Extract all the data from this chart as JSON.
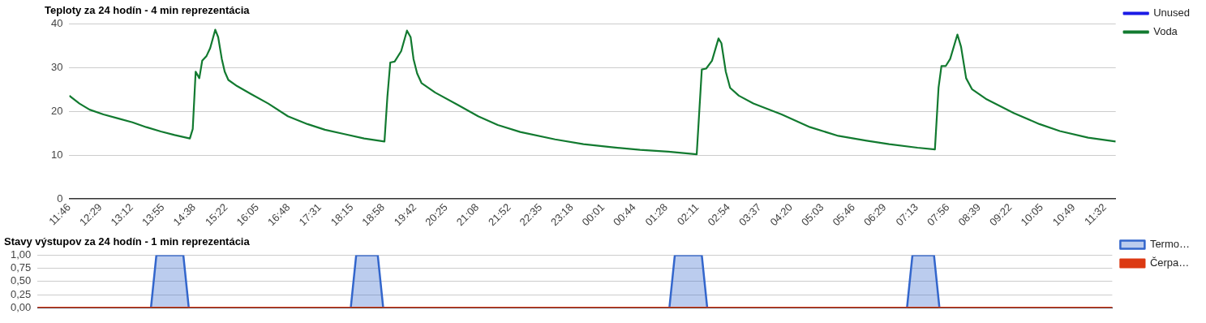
{
  "chart_data": [
    {
      "type": "line",
      "title": "Teploty za 24 hodín - 4 min reprezentácia",
      "grid": "y",
      "legend": "right",
      "line_style": "solid",
      "x": [
        "--01-01T11:46",
        "--01-01T12:00",
        "--01-01T12:14",
        "--01-01T12:33",
        "--01-01T12:53",
        "--01-01T13:13",
        "--01-01T13:32",
        "--01-01T13:52",
        "--01-01T14:11",
        "--01-01T14:32",
        "--01-01T14:36",
        "--01-01T14:40",
        "--01-01T14:45",
        "--01-01T14:49",
        "--01-01T14:55",
        "--01-01T15:00",
        "--01-01T15:07",
        "--01-01T15:11",
        "--01-01T15:16",
        "--01-01T15:20",
        "--01-01T15:25",
        "--01-01T15:37",
        "--01-01T15:56",
        "--01-01T16:20",
        "--01-01T16:47",
        "--01-01T17:14",
        "--01-01T17:38",
        "--01-01T18:05",
        "--01-01T18:32",
        "--01-01T19:00",
        "--01-01T19:04",
        "--01-01T19:08",
        "--01-01T19:14",
        "--01-01T19:23",
        "--01-01T19:31",
        "--01-01T19:36",
        "--01-01T19:40",
        "--01-01T19:45",
        "--01-01T19:51",
        "--01-01T20:10",
        "--01-01T20:41",
        "--01-01T21:09",
        "--01-01T21:36",
        "--01-01T22:07",
        "--01-01T22:55",
        "--01-01T23:34",
        "--01-02T00:13",
        "--01-02T00:52",
        "--01-02T01:31",
        "--01-02T02:10",
        "--01-02T02:17",
        "--01-02T02:23",
        "--01-02T02:31",
        "--01-02T02:40",
        "--01-02T02:44",
        "--01-02T02:50",
        "--01-02T02:56",
        "--01-02T03:08",
        "--01-02T03:28",
        "--01-02T04:07",
        "--01-02T04:46",
        "--01-02T05:25",
        "--01-02T06:04",
        "--01-02T06:35",
        "--01-02T07:14",
        "--01-02T07:38",
        "--01-02T07:43",
        "--01-02T07:47",
        "--01-02T07:53",
        "--01-02T07:59",
        "--01-02T08:09",
        "--01-02T08:14",
        "--01-02T08:21",
        "--01-02T08:29",
        "--01-02T08:48",
        "--01-02T09:27",
        "--01-02T10:02",
        "--01-02T10:30",
        "--01-02T11:09",
        "--01-02T11:47"
      ],
      "series": [
        {
          "name": "Unused",
          "color": "#1a1ae6",
          "values": [
            null,
            null,
            null,
            null,
            null,
            null,
            null,
            null,
            null,
            null,
            null,
            null,
            null,
            null,
            null,
            null,
            null,
            null,
            null,
            null,
            null,
            null,
            null,
            null,
            null,
            null,
            null,
            null,
            null,
            null,
            null,
            null,
            null,
            null,
            null,
            null,
            null,
            null,
            null,
            null,
            null,
            null,
            null,
            null,
            null,
            null,
            null,
            null,
            null,
            null,
            null,
            null,
            null,
            null,
            null,
            null,
            null,
            null,
            null,
            null,
            null,
            null,
            null,
            null,
            null,
            null,
            null,
            null,
            null,
            null,
            null,
            null,
            null,
            null,
            null,
            null,
            null,
            null,
            null,
            null
          ]
        },
        {
          "name": "Voda",
          "color": "#127a30",
          "values": [
            23.6,
            21.8,
            20.4,
            19.3,
            18.4,
            17.5,
            16.4,
            15.4,
            14.6,
            13.8,
            16.0,
            29.1,
            27.6,
            31.6,
            32.7,
            34.5,
            38.7,
            37.0,
            32.0,
            29.1,
            27.2,
            25.8,
            24.0,
            21.8,
            18.9,
            17.1,
            15.8,
            14.8,
            13.8,
            13.1,
            23.3,
            31.2,
            31.4,
            33.8,
            38.5,
            37.0,
            32.0,
            28.7,
            26.5,
            24.3,
            21.5,
            18.9,
            16.9,
            15.3,
            13.6,
            12.5,
            11.8,
            11.2,
            10.8,
            10.2,
            29.6,
            29.8,
            31.6,
            36.7,
            35.6,
            29.1,
            25.4,
            23.6,
            21.8,
            19.3,
            16.4,
            14.4,
            13.3,
            12.5,
            11.7,
            11.3,
            25.4,
            30.4,
            30.4,
            32.0,
            37.6,
            34.8,
            27.6,
            25.1,
            22.9,
            19.6,
            17.1,
            15.5,
            14.0,
            13.1
          ]
        }
      ],
      "xlim": [
        "--01-01T11:46",
        "--01-02T11:47"
      ],
      "xticks": [
        {
          "value": "--01-01T11:46",
          "label": "11:46"
        },
        {
          "value": "--01-01T12:29",
          "label": "12:29"
        },
        {
          "value": "--01-01T13:12",
          "label": "13:12"
        },
        {
          "value": "--01-01T13:55",
          "label": "13:55"
        },
        {
          "value": "--01-01T14:38",
          "label": "14:38"
        },
        {
          "value": "--01-01T15:22",
          "label": "15:22"
        },
        {
          "value": "--01-01T16:05",
          "label": "16:05"
        },
        {
          "value": "--01-01T16:48",
          "label": "16:48"
        },
        {
          "value": "--01-01T17:31",
          "label": "17:31"
        },
        {
          "value": "--01-01T18:15",
          "label": "18:15"
        },
        {
          "value": "--01-01T18:58",
          "label": "18:58"
        },
        {
          "value": "--01-01T19:42",
          "label": "19:42"
        },
        {
          "value": "--01-01T20:25",
          "label": "20:25"
        },
        {
          "value": "--01-01T21:08",
          "label": "21:08"
        },
        {
          "value": "--01-01T21:52",
          "label": "21:52"
        },
        {
          "value": "--01-01T22:35",
          "label": "22:35"
        },
        {
          "value": "--01-01T23:18",
          "label": "23:18"
        },
        {
          "value": "--01-02T00:01",
          "label": "00:01"
        },
        {
          "value": "--01-02T00:44",
          "label": "00:44"
        },
        {
          "value": "--01-02T01:28",
          "label": "01:28"
        },
        {
          "value": "--01-02T02:11",
          "label": "02:11"
        },
        {
          "value": "--01-02T02:54",
          "label": "02:54"
        },
        {
          "value": "--01-02T03:37",
          "label": "03:37"
        },
        {
          "value": "--01-02T04:20",
          "label": "04:20"
        },
        {
          "value": "--01-02T05:03",
          "label": "05:03"
        },
        {
          "value": "--01-02T05:46",
          "label": "05:46"
        },
        {
          "value": "--01-02T06:29",
          "label": "06:29"
        },
        {
          "value": "--01-02T07:13",
          "label": "07:13"
        },
        {
          "value": "--01-02T07:56",
          "label": "07:56"
        },
        {
          "value": "--01-02T08:39",
          "label": "08:39"
        },
        {
          "value": "--01-02T09:22",
          "label": "09:22"
        },
        {
          "value": "--01-02T10:05",
          "label": "10:05"
        },
        {
          "value": "--01-02T10:49",
          "label": "10:49"
        },
        {
          "value": "--01-02T11:32",
          "label": "11:32"
        }
      ],
      "ylim": [
        0,
        40
      ],
      "yticks": [
        0,
        10,
        20,
        30,
        40
      ]
    },
    {
      "type": "area",
      "title": "Stavy výstupov za 24 hodín - 1 min reprezentácia",
      "grid": "y",
      "legend": "right",
      "tick_labels": "y",
      "categories": [
        null,
        null,
        null,
        null,
        null,
        null,
        null,
        null,
        null,
        null,
        null,
        null,
        null,
        null,
        null,
        null,
        null,
        null,
        null,
        null,
        null,
        null,
        null,
        null,
        null,
        null,
        null,
        null,
        null,
        null,
        null,
        null,
        null,
        null,
        null,
        null,
        null,
        null,
        null,
        null,
        null,
        null,
        null,
        null,
        null,
        null,
        null,
        null,
        null,
        null,
        null,
        null,
        null,
        null,
        null,
        null,
        null,
        null,
        null,
        null,
        null,
        null,
        null,
        null,
        null,
        null,
        null,
        null,
        null,
        null,
        null,
        null,
        null,
        null,
        null,
        null,
        null,
        null,
        null,
        null,
        null,
        null,
        null,
        null,
        null,
        null,
        null,
        null,
        null,
        null,
        null,
        null,
        null,
        null,
        null,
        null,
        null,
        null,
        null,
        null,
        null,
        null,
        null,
        null,
        null,
        null,
        null,
        null,
        null,
        null,
        null,
        null,
        null,
        null,
        null,
        null,
        null,
        null,
        null,
        null,
        null,
        null,
        null,
        null,
        null,
        null,
        null,
        null,
        null,
        null,
        null,
        null,
        null,
        null,
        null,
        null,
        null,
        null,
        null,
        null,
        null,
        null,
        null,
        null,
        null,
        null,
        null,
        null,
        null,
        null,
        null,
        null,
        null,
        null,
        null,
        null,
        null,
        null,
        null,
        null,
        null,
        null,
        null,
        null,
        null,
        null,
        null,
        null,
        null,
        null,
        null,
        null,
        null,
        null,
        null,
        null,
        null,
        null,
        null,
        null,
        null,
        null,
        null,
        null,
        null,
        null,
        null,
        null,
        null,
        null,
        null,
        null,
        null,
        null,
        null,
        null,
        null,
        null,
        null,
        null
      ],
      "series": [
        {
          "name": "Termo…",
          "color": "#3366cc",
          "values": [
            0,
            0,
            0,
            0,
            0,
            0,
            0,
            0,
            0,
            0,
            0,
            0,
            0,
            0,
            0,
            0,
            0,
            0,
            0,
            0,
            0,
            0,
            1,
            1,
            1,
            1,
            1,
            1,
            0,
            0,
            0,
            0,
            0,
            0,
            0,
            0,
            0,
            0,
            0,
            0,
            0,
            0,
            0,
            0,
            0,
            0,
            0,
            0,
            0,
            0,
            0,
            0,
            0,
            0,
            0,
            0,
            0,
            0,
            0,
            1,
            1,
            1,
            1,
            1,
            0,
            0,
            0,
            0,
            0,
            0,
            0,
            0,
            0,
            0,
            0,
            0,
            0,
            0,
            0,
            0,
            0,
            0,
            0,
            0,
            0,
            0,
            0,
            0,
            0,
            0,
            0,
            0,
            0,
            0,
            0,
            0,
            0,
            0,
            0,
            0,
            0,
            0,
            0,
            0,
            0,
            0,
            0,
            0,
            0,
            0,
            0,
            0,
            0,
            0,
            0,
            0,
            0,
            0,
            1,
            1,
            1,
            1,
            1,
            1,
            0,
            0,
            0,
            0,
            0,
            0,
            0,
            0,
            0,
            0,
            0,
            0,
            0,
            0,
            0,
            0,
            0,
            0,
            0,
            0,
            0,
            0,
            0,
            0,
            0,
            0,
            0,
            0,
            0,
            0,
            0,
            0,
            0,
            0,
            0,
            0,
            0,
            0,
            1,
            1,
            1,
            1,
            1,
            0,
            0,
            0,
            0,
            0,
            0,
            0,
            0,
            0,
            0,
            0,
            0,
            0,
            0,
            0,
            0,
            0,
            0,
            0,
            0,
            0,
            0,
            0,
            0,
            0,
            0,
            0,
            0,
            0,
            0,
            0,
            0,
            0
          ]
        },
        {
          "name": "Čerpa…",
          "type": "line",
          "color": "#dc3912",
          "values": [
            0,
            0,
            0,
            0,
            0,
            0,
            0,
            0,
            0,
            0,
            0,
            0,
            0,
            0,
            0,
            0,
            0,
            0,
            0,
            0,
            0,
            0,
            0,
            0,
            0,
            0,
            0,
            0,
            0,
            0,
            0,
            0,
            0,
            0,
            0,
            0,
            0,
            0,
            0,
            0,
            0,
            0,
            0,
            0,
            0,
            0,
            0,
            0,
            0,
            0,
            0,
            0,
            0,
            0,
            0,
            0,
            0,
            0,
            0,
            0,
            0,
            0,
            0,
            0,
            0,
            0,
            0,
            0,
            0,
            0,
            0,
            0,
            0,
            0,
            0,
            0,
            0,
            0,
            0,
            0,
            0,
            0,
            0,
            0,
            0,
            0,
            0,
            0,
            0,
            0,
            0,
            0,
            0,
            0,
            0,
            0,
            0,
            0,
            0,
            0,
            0,
            0,
            0,
            0,
            0,
            0,
            0,
            0,
            0,
            0,
            0,
            0,
            0,
            0,
            0,
            0,
            0,
            0,
            0,
            0,
            0,
            0,
            0,
            0,
            0,
            0,
            0,
            0,
            0,
            0,
            0,
            0,
            0,
            0,
            0,
            0,
            0,
            0,
            0,
            0,
            0,
            0,
            0,
            0,
            0,
            0,
            0,
            0,
            0,
            0,
            0,
            0,
            0,
            0,
            0,
            0,
            0,
            0,
            0,
            0,
            0,
            0,
            0,
            0,
            0,
            0,
            0,
            0,
            0,
            0,
            0,
            0,
            0,
            0,
            0,
            0,
            0,
            0,
            0,
            0,
            0,
            0,
            0,
            0,
            0,
            0,
            0,
            0,
            0,
            0,
            0,
            0,
            0,
            0,
            0,
            0,
            0,
            0,
            0,
            0
          ]
        }
      ],
      "ylim": [
        0,
        1
      ],
      "yticks": [
        {
          "value": 0,
          "label": "0,00"
        },
        {
          "value": 0.25,
          "label": "0,25"
        },
        {
          "value": 0.5,
          "label": "0,50"
        },
        {
          "value": 0.75,
          "label": "0,75"
        },
        {
          "value": 1,
          "label": "1,00"
        }
      ]
    }
  ]
}
